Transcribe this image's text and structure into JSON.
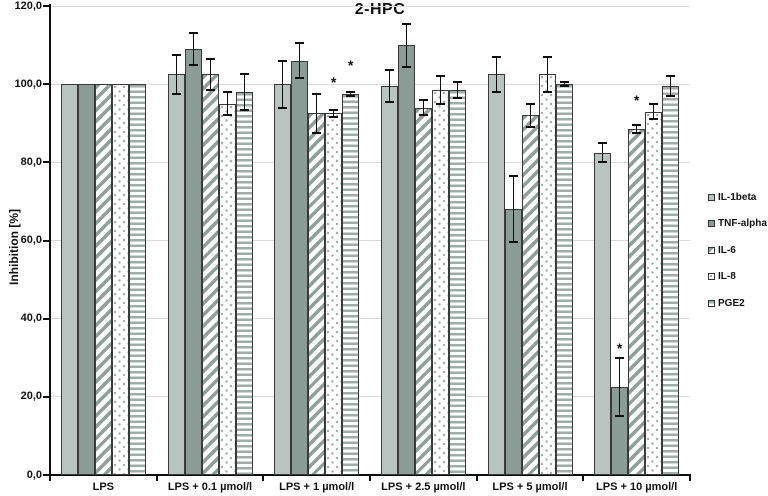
{
  "chart_data": {
    "type": "bar",
    "title": "2-HPC",
    "xlabel": "",
    "ylabel": "Inhibition [%]",
    "ylim": [
      0,
      120
    ],
    "ytick_step": 20,
    "ytick_labels": [
      "0,0",
      "20,0",
      "40,0",
      "60,0",
      "80,0",
      "100,0",
      "120,0"
    ],
    "grid": "horizontal",
    "legend_position": "right",
    "significance_marker": "*",
    "categories": [
      "LPS",
      "LPS + 0.1 µmol/l",
      "LPS + 1 µmol/l",
      "LPS + 2.5 µmol/l",
      "LPS + 5 µmol/l",
      "LPS + 10 µmol/l"
    ],
    "series": [
      {
        "name": "IL-1beta",
        "fill": "solid-light",
        "values": [
          100,
          102.5,
          100,
          99.5,
          102.5,
          82.5
        ],
        "errors": [
          0,
          5,
          6,
          4,
          4.5,
          2.5
        ],
        "stars": [
          null,
          null,
          null,
          null,
          null,
          null
        ]
      },
      {
        "name": "TNF-alpha",
        "fill": "solid-dark",
        "values": [
          100,
          109,
          106,
          110,
          68,
          22.5
        ],
        "errors": [
          0,
          4,
          4.5,
          5.5,
          8.5,
          7.5
        ],
        "stars": [
          null,
          null,
          null,
          null,
          null,
          32.5
        ]
      },
      {
        "name": "IL-6",
        "fill": "diagonal-stripes",
        "values": [
          100,
          102.5,
          92.5,
          94,
          92,
          88.5
        ],
        "errors": [
          0,
          4,
          5,
          2,
          3,
          1
        ],
        "stars": [
          null,
          null,
          null,
          null,
          null,
          96
        ]
      },
      {
        "name": "IL-8",
        "fill": "dots",
        "values": [
          100,
          95,
          92.5,
          98.5,
          102.5,
          93
        ],
        "errors": [
          0,
          3,
          1,
          3.5,
          4.5,
          2
        ],
        "stars": [
          null,
          null,
          100.5,
          null,
          null,
          null
        ]
      },
      {
        "name": "PGE2",
        "fill": "horizontal-stripes",
        "values": [
          100,
          98,
          97.5,
          98.5,
          100,
          99.5
        ],
        "errors": [
          0,
          4.5,
          0.5,
          2,
          0.5,
          2.5
        ],
        "stars": [
          null,
          null,
          105,
          null,
          null,
          null
        ]
      }
    ],
    "colors": {
      "bar_light": "#b9c4c0",
      "bar_dark": "#8b9b96",
      "stripe": "#8f9f9b",
      "dot": "#a5b1ad",
      "hline": "#9dada8",
      "bar_border": "#3a3a3a",
      "gridline": "#d9d9d9",
      "axis": "#0d0d0d",
      "background": "#ffffff"
    }
  }
}
